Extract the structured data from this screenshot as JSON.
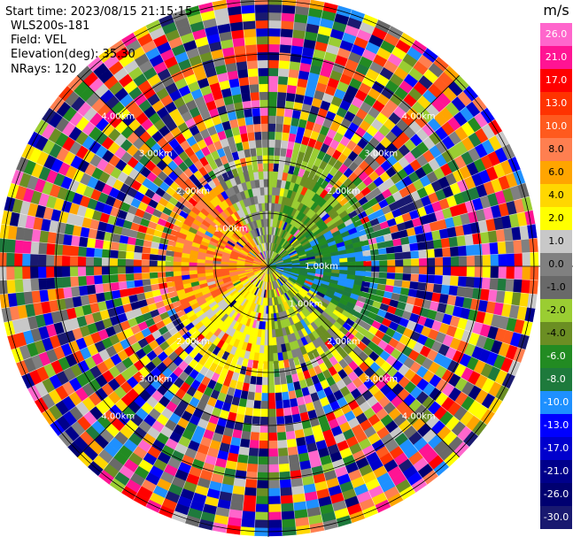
{
  "info": {
    "start_time": "Start time: 2023/08/15 21:15:15",
    "instrument": "WLS200s-181",
    "field": "Field: VEL",
    "elevation": "Elevation(deg): 35.30",
    "nrays": "NRays: 120"
  },
  "chart_data": {
    "type": "heatmap",
    "subtype": "polar PPI (lidar radial velocity)",
    "field": "VEL",
    "colorbar": {
      "unit": "m/s",
      "tick_labels": [
        "26.0",
        "21.0",
        "17.0",
        "13.0",
        "10.0",
        "8.0",
        "6.0",
        "4.0",
        "2.0",
        "1.0",
        "0.0",
        "-1.0",
        "-2.0",
        "-4.0",
        "-6.0",
        "-8.0",
        "-10.0",
        "-13.0",
        "-17.0",
        "-21.0",
        "-26.0",
        "-30.0"
      ],
      "colors": [
        "#ff66cc",
        "#ff1493",
        "#ff0000",
        "#ff3300",
        "#ff5a1e",
        "#ff7f50",
        "#ffa500",
        "#ffd700",
        "#ffff00",
        "#c8c8c8",
        "#808080",
        "#696969",
        "#9acd32",
        "#6b8e23",
        "#228b22",
        "#1e7a3c",
        "#1e90ff",
        "#0000ff",
        "#0000cd",
        "#00008b",
        "#000070",
        "#191970"
      ]
    },
    "range_rings": [
      {
        "label": "1.00km",
        "positions": [
          "upper-left",
          "right",
          "lower-right"
        ]
      },
      {
        "label": "2.00km",
        "positions": [
          "upper-left",
          "upper-right",
          "lower-left",
          "lower-right"
        ]
      },
      {
        "label": "3.00km",
        "positions": [
          "upper-left",
          "upper-right",
          "lower-left",
          "lower-right"
        ]
      },
      {
        "label": "4.00km",
        "positions": [
          "upper-left",
          "upper-right",
          "lower-left",
          "lower-right"
        ]
      }
    ],
    "crosshair": true,
    "nrays": 120,
    "near_range_pattern": [
      {
        "sector": "east",
        "dominant_values": [
          -6.0,
          -8.0,
          -10.0
        ]
      },
      {
        "sector": "north-east",
        "dominant_values": [
          -2.0,
          -4.0
        ]
      },
      {
        "sector": "west",
        "dominant_values": [
          8.0,
          6.0,
          4.0
        ]
      },
      {
        "sector": "south-west",
        "dominant_values": [
          2.0,
          4.0
        ]
      },
      {
        "sector": "north",
        "dominant_values": [
          1.0,
          0.0
        ]
      }
    ],
    "far_range_pattern": "noise (all colors, random)"
  }
}
